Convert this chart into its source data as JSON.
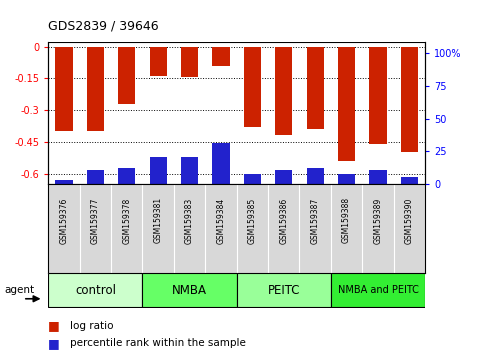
{
  "title": "GDS2839 / 39646",
  "samples": [
    "GSM159376",
    "GSM159377",
    "GSM159378",
    "GSM159381",
    "GSM159383",
    "GSM159384",
    "GSM159385",
    "GSM159386",
    "GSM159387",
    "GSM159388",
    "GSM159389",
    "GSM159390"
  ],
  "log_ratio": [
    -0.4,
    -0.4,
    -0.27,
    -0.14,
    -0.145,
    -0.09,
    -0.38,
    -0.42,
    -0.39,
    -0.54,
    -0.46,
    -0.5
  ],
  "percentile_rank": [
    3,
    10,
    12,
    20,
    20,
    30,
    7,
    10,
    12,
    7,
    10,
    5
  ],
  "groups": [
    {
      "label": "control",
      "start": 0,
      "end": 3,
      "color": "#ccffcc"
    },
    {
      "label": "NMBA",
      "start": 3,
      "end": 6,
      "color": "#66ff66"
    },
    {
      "label": "PEITC",
      "start": 6,
      "end": 9,
      "color": "#99ff99"
    },
    {
      "label": "NMBA and PEITC",
      "start": 9,
      "end": 12,
      "color": "#33ee33"
    }
  ],
  "ylim_left": [
    -0.65,
    0.02
  ],
  "ylim_right": [
    0,
    108.33
  ],
  "yticks_left": [
    0.0,
    -0.15,
    -0.3,
    -0.45,
    -0.6
  ],
  "ytick_labels_left": [
    "0",
    "-0.15",
    "-0.3",
    "-0.45",
    "-0.6"
  ],
  "yticks_right_vals": [
    0,
    25,
    50,
    75,
    100
  ],
  "yticks_right_mapped": [
    0.0,
    -0.15,
    -0.3,
    -0.45,
    -0.6
  ],
  "bar_color": "#cc2200",
  "percentile_color": "#2222cc",
  "background_color": "#ffffff",
  "plot_bg": "#ffffff",
  "bar_width": 0.55,
  "n": 12
}
